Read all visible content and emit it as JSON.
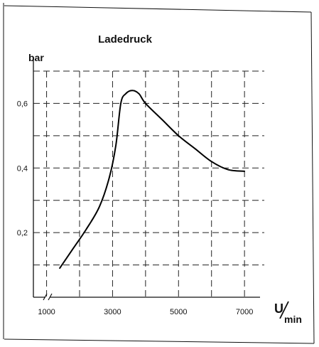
{
  "chart_data": {
    "type": "line",
    "title": "Ladedruck",
    "ylabel": "bar",
    "xlabel_unit_numerator": "U",
    "xlabel_unit_denominator": "min",
    "xlim": [
      600,
      7600
    ],
    "ylim": [
      0,
      0.7
    ],
    "x_tick_labels": [
      "1000",
      "3000",
      "5000",
      "7000"
    ],
    "x_ticks": [
      1000,
      3000,
      5000,
      7000
    ],
    "y_tick_labels": [
      "0,2",
      "0,4",
      "0,6"
    ],
    "y_ticks": [
      0.2,
      0.4,
      0.6
    ],
    "grid": true,
    "axis_break_x": true,
    "series": [
      {
        "x": [
          1400,
          1800,
          2200,
          2600,
          2900,
          3100,
          3250,
          3400,
          3600,
          3800,
          4000,
          4500,
          5000,
          5500,
          6000,
          6500,
          7000
        ],
        "y": [
          0.09,
          0.15,
          0.21,
          0.28,
          0.37,
          0.47,
          0.6,
          0.63,
          0.64,
          0.63,
          0.6,
          0.55,
          0.5,
          0.46,
          0.42,
          0.395,
          0.39
        ]
      }
    ]
  }
}
